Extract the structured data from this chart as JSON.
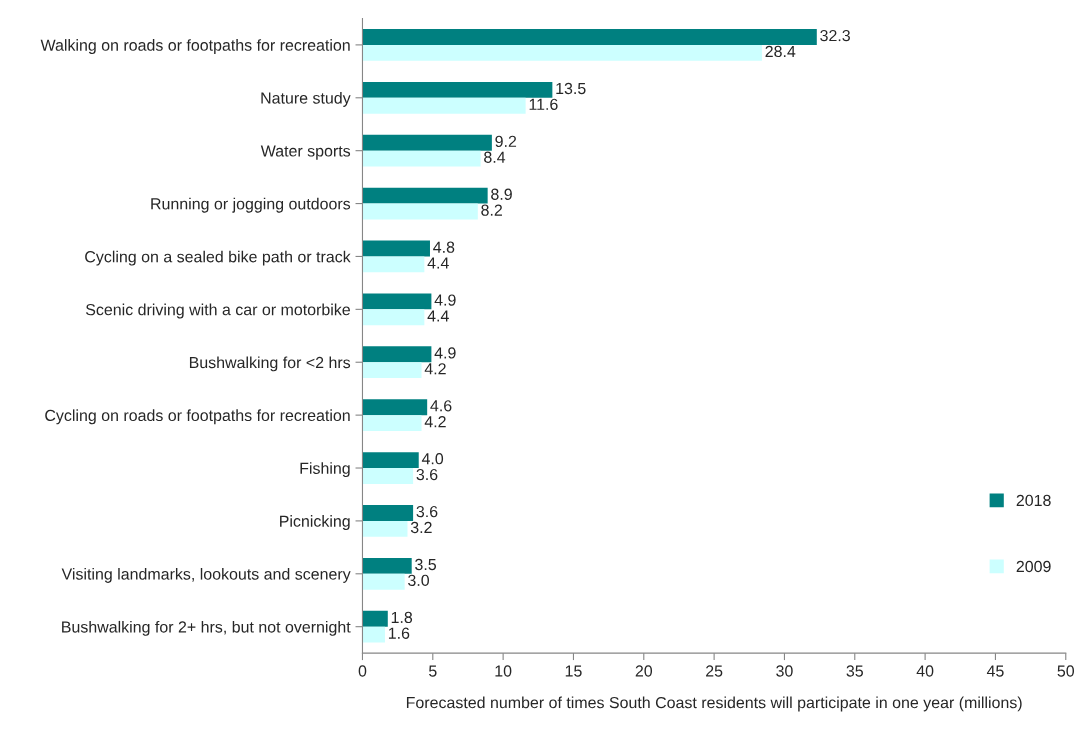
{
  "chart_data": {
    "type": "bar",
    "orientation": "horizontal",
    "xlabel": "Forecasted number of times South Coast residents will participate in one year (millions)",
    "categories": [
      "Walking on roads or footpaths for recreation",
      "Nature study",
      "Water sports",
      "Running or jogging outdoors",
      "Cycling on a sealed bike path or track",
      "Scenic driving with a car or motorbike",
      "Bushwalking for <2 hrs",
      "Cycling on roads or footpaths for recreation",
      "Fishing",
      "Picnicking",
      "Visiting landmarks, lookouts and scenery",
      "Bushwalking for 2+ hrs, but not overnight"
    ],
    "series": [
      {
        "name": "2018",
        "color": "#008080",
        "values": [
          32.3,
          13.5,
          9.2,
          8.9,
          4.8,
          4.9,
          4.9,
          4.6,
          4.0,
          3.6,
          3.5,
          1.8
        ],
        "value_labels": [
          "32.3",
          "13.5",
          "9.2",
          "8.9",
          "4.8",
          "4.9",
          "4.9",
          "4.6",
          "4.0",
          "3.6",
          "3.5",
          "1.8"
        ]
      },
      {
        "name": "2009",
        "color": "#ccffff",
        "values": [
          28.4,
          11.6,
          8.4,
          8.2,
          4.4,
          4.4,
          4.2,
          4.2,
          3.6,
          3.2,
          3.0,
          1.6
        ],
        "value_labels": [
          "28.4",
          "11.6",
          "8.4",
          "8.2",
          "4.4",
          "4.4",
          "4.2",
          "4.2",
          "3.6",
          "3.2",
          "3.0",
          "1.6"
        ]
      }
    ],
    "xlim": [
      0,
      50
    ],
    "xticks": [
      0,
      5,
      10,
      15,
      20,
      25,
      30,
      35,
      40,
      45,
      50
    ],
    "grid": false,
    "legend": "bottom right"
  }
}
